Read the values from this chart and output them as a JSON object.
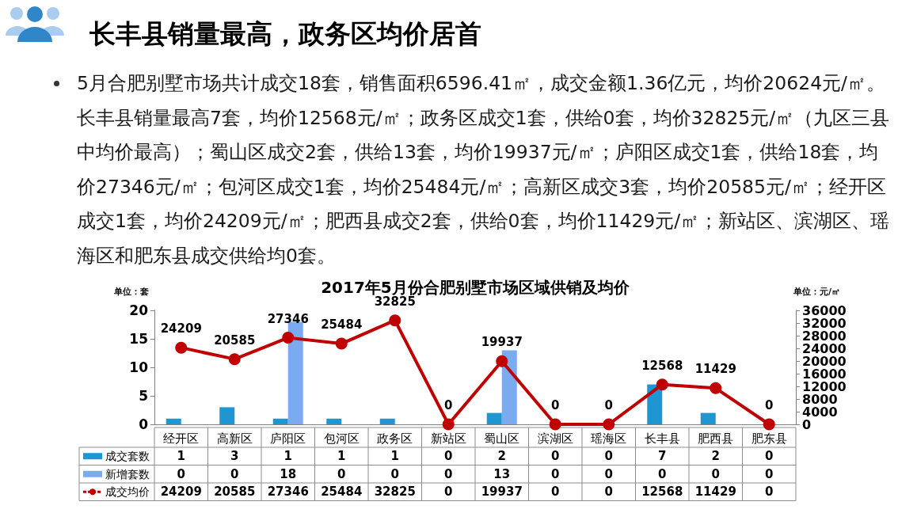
{
  "chart_data": {
    "type": "bar",
    "title": "长丰县销量最高，政务区均价居首",
    "subtitle": "2017年5月份合肥别墅市场区域供销及均价",
    "annotations": [
      "5月合肥别墅市场共计成交18套，销售面积6596.41㎡，成交金额1.36亿元，均价20624元/㎡。长丰县销量最高7套，均价12568元/㎡；政务区成交1套，供给0套，均价32825元/㎡（九区三县中均价最高）；蜀山区成交2套，供给13套，均价19937元/㎡；庐阳区成交1套，供给18套，均价27346元/㎡；包河区成交1套，均价25484元/㎡；高新区成交3套，均价20585元/㎡；经开区成交1套，均价24209元/㎡；肥西县成交2套，供给0套，均价11429元/㎡；新站区、滨湖区、瑶海区和肥东县成交供给均0套。",
      "24209",
      "20585",
      "27346",
      "25484",
      "32825",
      "0",
      "19937",
      "0",
      "0",
      "12568",
      "11429",
      "0"
    ],
    "ylabel": "单位：套",
    "y2label": "单位：元/㎡",
    "categories": [
      "经开区",
      "高新区",
      "庐阳区",
      "包河区",
      "政务区",
      "新站区",
      "蜀山区",
      "滨湖区",
      "瑶海区",
      "长丰县",
      "肥西县",
      "肥东县"
    ],
    "series": [
      {
        "name": "成交套数",
        "color": "#1e96d2",
        "values": [
          1,
          3,
          1,
          1,
          1,
          0,
          2,
          0,
          0,
          7,
          2,
          0
        ]
      },
      {
        "name": "新增套数",
        "color": "#7aaaf0",
        "values": [
          0,
          0,
          18,
          0,
          0,
          0,
          13,
          0,
          0,
          0,
          0,
          0
        ]
      },
      {
        "name": "成交均价",
        "type": "line",
        "axis": "y2",
        "color": "#c00000",
        "values": [
          24209,
          20585,
          27346,
          25484,
          32825,
          0,
          19937,
          0,
          0,
          12568,
          11429,
          0
        ]
      }
    ],
    "ylim": [
      0,
      20
    ],
    "yticks": [
      0,
      5,
      10,
      15,
      20
    ],
    "y2lim": [
      0,
      36000
    ],
    "y2ticks": [
      0,
      4000,
      8000,
      12000,
      16000,
      20000,
      24000,
      28000,
      32000,
      36000
    ],
    "marker": "circle",
    "legend": "bottom left",
    "data_labels": true
  }
}
